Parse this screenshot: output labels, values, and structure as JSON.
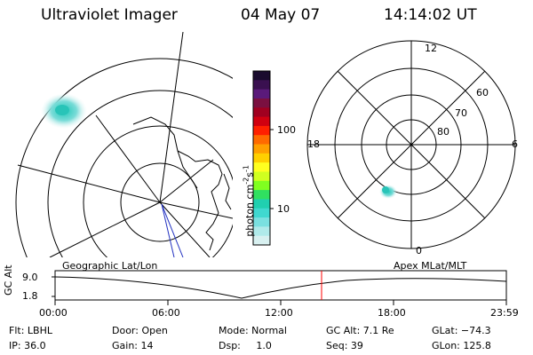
{
  "header": {
    "title": "Ultraviolet Imager",
    "date": "04 May 07",
    "time": "14:14:02 UT"
  },
  "colorbar": {
    "unit": "photon cm",
    "unit_sup1": "-2",
    "unit_s": "s",
    "unit_sup2": "-1",
    "ticks": [
      "100",
      "10"
    ],
    "colors_top_to_bottom": [
      "#1a0b2e",
      "#3a1050",
      "#5a1a7a",
      "#7a1040",
      "#a00020",
      "#d00010",
      "#ff2000",
      "#ff6a00",
      "#ffa000",
      "#ffd000",
      "#ffff20",
      "#d0ff20",
      "#80ff20",
      "#30e060",
      "#20d0b0",
      "#40d8d0",
      "#7ae0e0",
      "#b0eaea",
      "#d8f0f0"
    ]
  },
  "polar_plot": {
    "mlt_labels": {
      "top": "12",
      "left": "18",
      "right": "6",
      "bottom": "0"
    },
    "lat_labels": [
      "60",
      "70",
      "80"
    ]
  },
  "timeline": {
    "left_label": "Geographic Lat/Lon",
    "right_label": "Apex MLat/MLT",
    "yaxis_label": "GC Alt",
    "ytick_top": "9.0",
    "ytick_bottom": "1.8",
    "xticks": [
      "00:00",
      "06:00",
      "12:00",
      "18:00",
      "23:59"
    ],
    "current_marker": "14:14:02",
    "marker_color": "#ff0000"
  },
  "info": {
    "flt": "Flt: LBHL",
    "ip": "IP: 36.0",
    "door": "Door: Open",
    "gain": "Gain: 14",
    "mode": "Mode: Normal",
    "dsp": "Dsp:     1.0",
    "gcalt": "GC Alt: 7.1 Re",
    "seq": "Seq: 39",
    "glat": "GLat: −74.3",
    "glon": "GLon: 125.8"
  }
}
